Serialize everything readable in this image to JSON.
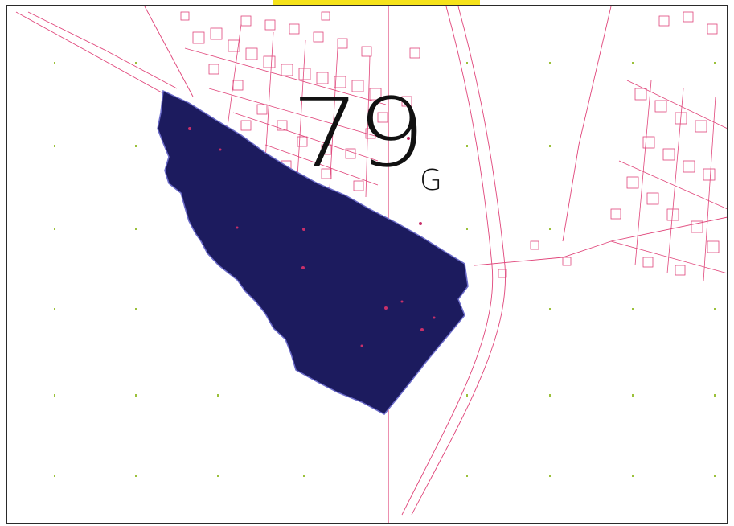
{
  "header": {
    "text": "",
    "color": "#f5e21a"
  },
  "map": {
    "zone_number": "79",
    "zone_letter": "G",
    "parcel_fill": "#1c1b5e",
    "cadastral_line_color": "#e0457a",
    "grid_marker_color": "#9bc13a",
    "labels": {
      "east_locality": "",
      "northeast": "",
      "north_center": ""
    }
  }
}
